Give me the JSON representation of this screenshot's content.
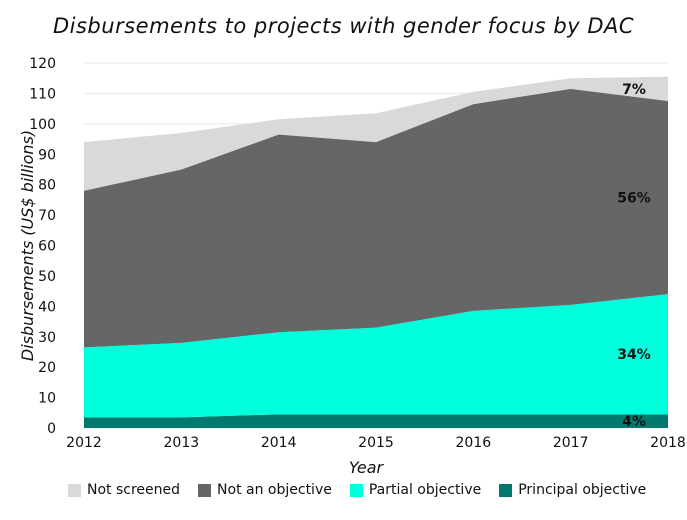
{
  "chart_data": {
    "type": "area",
    "stacked": true,
    "title": "Disbursements to projects with gender focus by DAC",
    "xlabel": "Year",
    "ylabel": "Disbursements (US$ billions)",
    "ylim": [
      0,
      120
    ],
    "yticks": [
      0,
      10,
      20,
      30,
      40,
      50,
      60,
      70,
      80,
      90,
      100,
      110,
      120
    ],
    "x": [
      2012,
      2013,
      2014,
      2015,
      2016,
      2017,
      2018
    ],
    "grid": true,
    "legend_position": "bottom",
    "series": [
      {
        "name": "Principal objective",
        "color": "#007a6e",
        "values": [
          3.5,
          3.5,
          4.5,
          4.5,
          4.5,
          4.5,
          4.5
        ]
      },
      {
        "name": "Partial objective",
        "color": "#00ffdd",
        "values": [
          23,
          24.5,
          27,
          28.5,
          34,
          36,
          39.5
        ]
      },
      {
        "name": "Not an objective",
        "color": "#666666",
        "values": [
          51.5,
          57,
          65,
          61,
          68,
          71,
          63.5
        ]
      },
      {
        "name": "Not screened",
        "color": "#d9d9d9",
        "values": [
          16,
          12,
          5,
          9.5,
          4,
          3.5,
          8
        ]
      }
    ],
    "annotations": [
      {
        "text": "4%",
        "series": "Principal objective"
      },
      {
        "text": "34%",
        "series": "Partial objective"
      },
      {
        "text": "56%",
        "series": "Not an objective"
      },
      {
        "text": "7%",
        "series": "Not screened"
      }
    ]
  },
  "legend_order": [
    "Not screened",
    "Not an objective",
    "Partial objective",
    "Principal objective"
  ]
}
